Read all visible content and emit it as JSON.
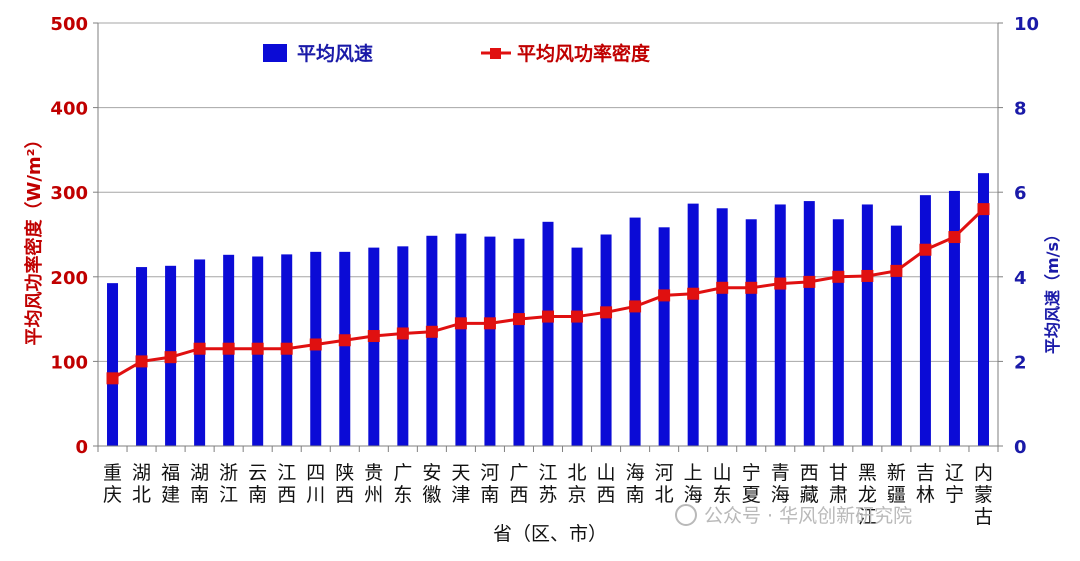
{
  "chart_data": {
    "type": "bar",
    "categories": [
      "重庆",
      "湖北",
      "福建",
      "湖南",
      "浙江",
      "云南",
      "江西",
      "四川",
      "陕西",
      "贵州",
      "广东",
      "安徽",
      "天津",
      "河南",
      "广西",
      "江苏",
      "北京",
      "山西",
      "海南",
      "河北",
      "上海",
      "山东",
      "宁夏",
      "青海",
      "西藏",
      "甘肃",
      "黑龙江",
      "新疆",
      "吉林",
      "辽宁",
      "内蒙古"
    ],
    "series": [
      {
        "name": "平均风速",
        "type": "bar",
        "axis": "right",
        "color": "#0b0bd6",
        "values": [
          3.85,
          4.23,
          4.26,
          4.41,
          4.52,
          4.48,
          4.53,
          4.59,
          4.59,
          4.69,
          4.72,
          4.97,
          5.02,
          4.95,
          4.9,
          5.3,
          4.69,
          5.0,
          5.4,
          5.17,
          5.73,
          5.62,
          5.36,
          5.71,
          5.79,
          5.36,
          5.71,
          5.21,
          5.93,
          6.03,
          6.45
        ]
      },
      {
        "name": "平均风功率密度",
        "type": "line",
        "axis": "left",
        "color": "#e01010",
        "values": [
          80,
          100,
          105,
          115,
          115,
          115,
          115,
          120,
          125,
          130,
          133,
          135,
          145,
          145,
          150,
          153,
          153,
          158,
          165,
          178,
          180,
          187,
          187,
          192,
          194,
          200,
          201,
          207,
          232,
          247,
          280
        ]
      }
    ],
    "xlabel": "省（区、市）",
    "ylabel_left": "平均风功率密度（W/m²）",
    "ylabel_right": "平均风速（m/s）",
    "ylim_left": [
      0,
      500
    ],
    "ylim_right": [
      0,
      10
    ],
    "yticks_left": [
      "0",
      "100",
      "200",
      "300",
      "400",
      "500"
    ],
    "yticks_right": [
      "0",
      "2",
      "4",
      "6",
      "8",
      "10"
    ],
    "legend_position": "top-left",
    "grid": true
  },
  "watermark": {
    "text": "公众号 · 华风创新研究院"
  }
}
